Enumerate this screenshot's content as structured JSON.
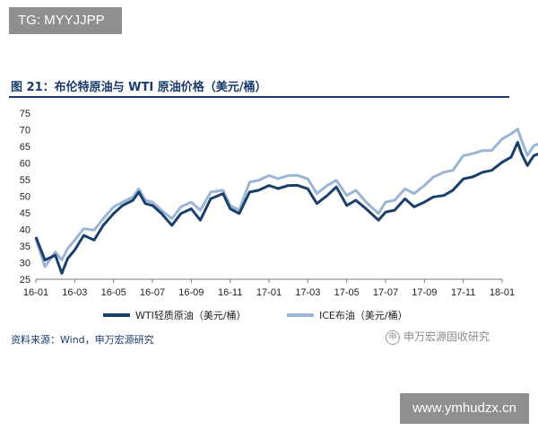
{
  "header": {
    "tag": "TG: MYYJJPP"
  },
  "title": "图 21：布伦特原油与 WTI 原油价格（美元/桶）",
  "source": "资料来源：Wind，申万宏源研究",
  "watermark": {
    "logo_text": "申万宏源固收研究",
    "site": "www.ymhudzx.cn"
  },
  "colors": {
    "wti": "#1b3f6b",
    "ice": "#9bb5d6",
    "title": "#1a3a6b"
  },
  "chart_data": {
    "type": "line",
    "ylim": [
      25,
      75
    ],
    "yticks": [
      25,
      30,
      35,
      40,
      45,
      50,
      55,
      60,
      65,
      70,
      75
    ],
    "xticks": [
      "16-01",
      "16-03",
      "16-05",
      "16-07",
      "16-09",
      "16-11",
      "17-01",
      "17-03",
      "17-05",
      "17-07",
      "17-09",
      "17-11",
      "18-01"
    ],
    "legend_position": "bottom",
    "series": [
      {
        "name": "WTI轻质原油（美元/桶）",
        "points": [
          [
            "16-01",
            37.5
          ],
          [
            "16-01-15",
            31
          ],
          [
            "16-02",
            32
          ],
          [
            "16-02-11",
            27
          ],
          [
            "16-02-20",
            31
          ],
          [
            "16-03",
            34
          ],
          [
            "16-03-15",
            38
          ],
          [
            "16-04",
            37
          ],
          [
            "16-04-15",
            41
          ],
          [
            "16-05",
            45
          ],
          [
            "16-05-15",
            47
          ],
          [
            "16-06",
            49
          ],
          [
            "16-06-10",
            51
          ],
          [
            "16-06-20",
            48
          ],
          [
            "16-07",
            47
          ],
          [
            "16-07-15",
            45
          ],
          [
            "16-08",
            41
          ],
          [
            "16-08-15",
            45
          ],
          [
            "16-09",
            46
          ],
          [
            "16-09-15",
            43
          ],
          [
            "16-10",
            49
          ],
          [
            "16-10-20",
            51
          ],
          [
            "16-11",
            46
          ],
          [
            "16-11-15",
            45
          ],
          [
            "16-12",
            51
          ],
          [
            "16-12-15",
            52
          ],
          [
            "17-01",
            53
          ],
          [
            "17-01-15",
            52.5
          ],
          [
            "17-02",
            53
          ],
          [
            "17-02-15",
            53.5
          ],
          [
            "17-03",
            52
          ],
          [
            "17-03-15",
            48
          ],
          [
            "17-04",
            50
          ],
          [
            "17-04-15",
            53
          ],
          [
            "17-05",
            47
          ],
          [
            "17-05-15",
            49
          ],
          [
            "17-06",
            46
          ],
          [
            "17-06-20",
            43
          ],
          [
            "17-07",
            45
          ],
          [
            "17-07-15",
            46
          ],
          [
            "17-08",
            49
          ],
          [
            "17-08-15",
            47
          ],
          [
            "17-09",
            48
          ],
          [
            "17-09-15",
            50
          ],
          [
            "17-10",
            50
          ],
          [
            "17-10-15",
            52
          ],
          [
            "17-11",
            55
          ],
          [
            "17-11-15",
            56
          ],
          [
            "17-12",
            57
          ],
          [
            "17-12-15",
            58
          ],
          [
            "18-01",
            60
          ],
          [
            "18-01-15",
            62
          ],
          [
            "18-01-25",
            66
          ],
          [
            "18-02",
            63
          ],
          [
            "18-02-10",
            59
          ],
          [
            "18-02-15",
            61
          ],
          [
            "18-02-20",
            62
          ],
          [
            "18-02-28",
            63
          ]
        ]
      },
      {
        "name": "ICE布油（美元/桶）",
        "points": [
          [
            "16-01",
            37
          ],
          [
            "16-01-15",
            29
          ],
          [
            "16-02",
            33
          ],
          [
            "16-02-11",
            31
          ],
          [
            "16-02-20",
            34
          ],
          [
            "16-03",
            37
          ],
          [
            "16-03-15",
            40
          ],
          [
            "16-04",
            40
          ],
          [
            "16-04-15",
            43
          ],
          [
            "16-05",
            47
          ],
          [
            "16-05-15",
            48
          ],
          [
            "16-06",
            50
          ],
          [
            "16-06-10",
            52
          ],
          [
            "16-06-20",
            49
          ],
          [
            "16-07",
            48
          ],
          [
            "16-07-15",
            46
          ],
          [
            "16-08",
            43
          ],
          [
            "16-08-15",
            47
          ],
          [
            "16-09",
            48
          ],
          [
            "16-09-15",
            46
          ],
          [
            "16-10",
            51
          ],
          [
            "16-10-20",
            52
          ],
          [
            "16-11",
            47
          ],
          [
            "16-11-15",
            46
          ],
          [
            "16-12",
            54
          ],
          [
            "16-12-15",
            55
          ],
          [
            "17-01",
            56
          ],
          [
            "17-01-15",
            55.5
          ],
          [
            "17-02",
            56
          ],
          [
            "17-02-15",
            56.5
          ],
          [
            "17-03",
            55
          ],
          [
            "17-03-15",
            51
          ],
          [
            "17-04",
            53
          ],
          [
            "17-04-15",
            55
          ],
          [
            "17-05",
            50
          ],
          [
            "17-05-15",
            52
          ],
          [
            "17-06",
            48
          ],
          [
            "17-06-20",
            45
          ],
          [
            "17-07",
            48
          ],
          [
            "17-07-15",
            49
          ],
          [
            "17-08",
            52
          ],
          [
            "17-08-15",
            51
          ],
          [
            "17-09",
            53
          ],
          [
            "17-09-15",
            56
          ],
          [
            "17-10",
            57
          ],
          [
            "17-10-15",
            58
          ],
          [
            "17-11",
            62
          ],
          [
            "17-11-15",
            63
          ],
          [
            "17-12",
            63.5
          ],
          [
            "17-12-15",
            64
          ],
          [
            "18-01",
            67
          ],
          [
            "18-01-15",
            69
          ],
          [
            "18-01-25",
            70
          ],
          [
            "18-02",
            67
          ],
          [
            "18-02-10",
            62
          ],
          [
            "18-02-15",
            64
          ],
          [
            "18-02-20",
            65
          ],
          [
            "18-02-28",
            66
          ]
        ]
      }
    ]
  }
}
